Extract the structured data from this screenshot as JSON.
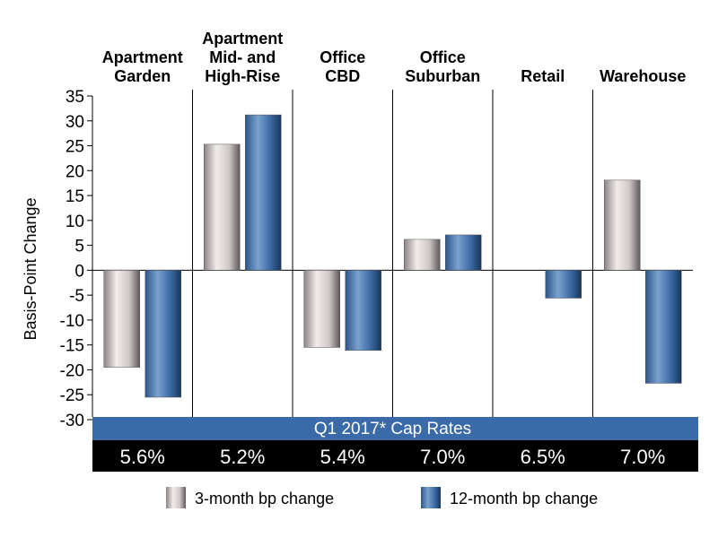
{
  "chart_data": {
    "type": "bar",
    "title": "",
    "xlabel": "",
    "ylabel": "Basis-Point Change",
    "ylim": [
      -30,
      35
    ],
    "yticks": [
      35,
      30,
      25,
      20,
      15,
      10,
      5,
      0,
      -5,
      -10,
      -15,
      -20,
      -25,
      -30
    ],
    "categories": [
      [
        "Apartment",
        "Garden"
      ],
      [
        "Apartment",
        "Mid- and",
        "High-Rise"
      ],
      [
        "Office",
        "CBD"
      ],
      [
        "Office",
        "Suburban"
      ],
      [
        "Retail"
      ],
      [
        "Warehouse"
      ]
    ],
    "series": [
      {
        "name": "3-month bp change",
        "values": [
          -19.5,
          25.3,
          -15.5,
          6.2,
          0,
          18.1
        ]
      },
      {
        "name": "12-month bp change",
        "values": [
          -25.5,
          31.2,
          -16.1,
          7.1,
          -5.6,
          -22.7
        ]
      }
    ],
    "cap_rates_label": "Q1 2017* Cap Rates",
    "cap_rates": [
      "5.6%",
      "5.2%",
      "5.4%",
      "7.0%",
      "6.5%",
      "7.0%"
    ],
    "colors": {
      "band": "#3a6aa8",
      "rates_bg": "#000000",
      "rates_text": "#ffffff",
      "band_text": "#ffffff",
      "series_3m_light": "#efe9e7",
      "series_3m_dark": "#6b6466",
      "series_12m_light": "#6f97c6",
      "series_12m_dark": "#1d3d66"
    }
  }
}
